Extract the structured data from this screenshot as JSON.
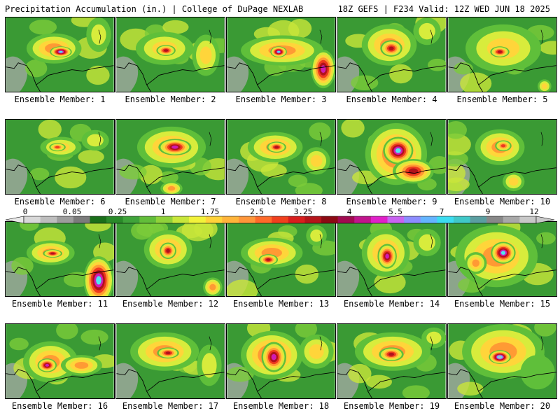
{
  "header": {
    "title": "Precipitation Accumulation (in.) | College of DuPage NEXLAB",
    "run_info": "18Z GEFS | F234 Valid: 12Z WED JUN 18 2025"
  },
  "legend": {
    "labels": [
      "0",
      "0.05",
      "0.25",
      "1",
      "1.75",
      "2.5",
      "3.25",
      "4",
      "5.5",
      "7",
      "9",
      "12"
    ],
    "colors": [
      "#d8d8d8",
      "#bdbdbd",
      "#9d9d9d",
      "#7b7b7b",
      "#1a6e1a",
      "#2a8a2a",
      "#3fa33a",
      "#62bd3a",
      "#90d23a",
      "#c8e63a",
      "#f2f23a",
      "#ffd23a",
      "#ffb43a",
      "#ff963a",
      "#ff6a2a",
      "#f0401e",
      "#d81e1e",
      "#b4141a",
      "#8c0a14",
      "#a00a50",
      "#c0148c",
      "#e020c8",
      "#c864f0",
      "#8c8cff",
      "#64b4ff",
      "#3cdcf0",
      "#40c8c8",
      "#5a9ea0",
      "#888888",
      "#a8a8a8",
      "#c8c8c8"
    ]
  },
  "members": [
    {
      "caption": "Ensemble Member: 1",
      "blobs": [
        [
          70,
          45,
          40,
          22,
          1.2
        ],
        [
          80,
          50,
          16,
          8,
          2.5
        ],
        [
          135,
          25,
          18,
          25,
          0.5
        ]
      ]
    },
    {
      "caption": "Ensemble Member: 2",
      "blobs": [
        [
          70,
          45,
          42,
          24,
          1.0
        ],
        [
          72,
          48,
          14,
          8,
          1.8
        ],
        [
          130,
          55,
          20,
          30,
          0.9
        ]
      ]
    },
    {
      "caption": "Ensemble Member: 3",
      "blobs": [
        [
          80,
          48,
          60,
          22,
          1.4
        ],
        [
          75,
          50,
          12,
          8,
          2.6
        ],
        [
          140,
          75,
          18,
          28,
          2.2
        ]
      ]
    },
    {
      "caption": "Ensemble Member: 4",
      "blobs": [
        [
          75,
          40,
          40,
          30,
          1.3
        ],
        [
          78,
          45,
          16,
          12,
          2.0
        ],
        [
          130,
          20,
          20,
          20,
          0.6
        ]
      ]
    },
    {
      "caption": "Ensemble Member: 5",
      "blobs": [
        [
          80,
          45,
          55,
          35,
          1.0
        ],
        [
          75,
          50,
          14,
          8,
          1.8
        ],
        [
          140,
          100,
          10,
          10,
          1.0
        ]
      ]
    },
    {
      "caption": "Ensemble Member: 6",
      "blobs": [
        [
          80,
          40,
          30,
          15,
          1.0
        ],
        [
          75,
          40,
          12,
          6,
          1.6
        ],
        [
          130,
          30,
          20,
          15,
          0.6
        ]
      ]
    },
    {
      "caption": "Ensemble Member: 7",
      "blobs": [
        [
          80,
          40,
          50,
          30,
          1.4
        ],
        [
          85,
          40,
          24,
          12,
          2.2
        ],
        [
          80,
          100,
          16,
          10,
          1.2
        ]
      ]
    },
    {
      "caption": "Ensemble Member: 8",
      "blobs": [
        [
          70,
          40,
          40,
          22,
          1.2
        ],
        [
          72,
          40,
          14,
          8,
          1.8
        ],
        [
          130,
          60,
          20,
          20,
          0.8
        ]
      ]
    },
    {
      "caption": "Ensemble Member: 9",
      "blobs": [
        [
          85,
          50,
          45,
          45,
          1.6
        ],
        [
          88,
          45,
          22,
          20,
          2.6
        ],
        [
          110,
          75,
          30,
          18,
          2.0
        ]
      ]
    },
    {
      "caption": "Ensemble Member: 10",
      "blobs": [
        [
          75,
          40,
          36,
          26,
          1.1
        ],
        [
          80,
          38,
          12,
          8,
          1.6
        ],
        [
          95,
          90,
          16,
          14,
          1.0
        ]
      ]
    },
    {
      "caption": "Ensemble Member: 11",
      "blobs": [
        [
          65,
          45,
          35,
          18,
          1.3
        ],
        [
          68,
          46,
          14,
          6,
          2.0
        ],
        [
          135,
          85,
          22,
          35,
          2.4
        ]
      ]
    },
    {
      "caption": "Ensemble Member: 12",
      "blobs": [
        [
          75,
          40,
          35,
          28,
          1.3
        ],
        [
          75,
          42,
          12,
          12,
          1.9
        ],
        [
          140,
          95,
          14,
          14,
          1.2
        ]
      ]
    },
    {
      "caption": "Ensemble Member: 13",
      "blobs": [
        [
          65,
          45,
          45,
          22,
          1.3
        ],
        [
          60,
          55,
          14,
          8,
          1.8
        ],
        [
          130,
          20,
          15,
          15,
          0.5
        ]
      ]
    },
    {
      "caption": "Ensemble Member: 14",
      "blobs": [
        [
          70,
          45,
          35,
          35,
          1.4
        ],
        [
          72,
          50,
          14,
          18,
          2.2
        ],
        [
          130,
          30,
          20,
          20,
          0.6
        ]
      ]
    },
    {
      "caption": "Ensemble Member: 15",
      "blobs": [
        [
          70,
          50,
          60,
          45,
          1.3
        ],
        [
          80,
          45,
          18,
          16,
          2.4
        ],
        [
          40,
          60,
          16,
          16,
          1.2
        ]
      ]
    },
    {
      "caption": "Ensemble Member: 16",
      "blobs": [
        [
          65,
          55,
          40,
          30,
          1.4
        ],
        [
          60,
          60,
          14,
          10,
          2.2
        ],
        [
          110,
          60,
          30,
          15,
          1.1
        ]
      ]
    },
    {
      "caption": "Ensemble Member: 17",
      "blobs": [
        [
          70,
          40,
          50,
          28,
          1.4
        ],
        [
          75,
          42,
          16,
          8,
          2.0
        ],
        [
          135,
          60,
          18,
          30,
          0.7
        ]
      ]
    },
    {
      "caption": "Ensemble Member: 18",
      "blobs": [
        [
          65,
          45,
          45,
          35,
          1.5
        ],
        [
          68,
          48,
          18,
          22,
          2.3
        ],
        [
          130,
          40,
          25,
          25,
          0.8
        ]
      ]
    },
    {
      "caption": "Ensemble Member: 19",
      "blobs": [
        [
          80,
          40,
          55,
          28,
          1.3
        ],
        [
          78,
          44,
          18,
          10,
          1.9
        ],
        [
          140,
          20,
          18,
          15,
          0.6
        ]
      ]
    },
    {
      "caption": "Ensemble Member: 20",
      "blobs": [
        [
          80,
          40,
          60,
          40,
          1.2
        ],
        [
          75,
          48,
          16,
          10,
          2.8
        ],
        [
          130,
          70,
          25,
          25,
          0.4
        ]
      ]
    }
  ]
}
